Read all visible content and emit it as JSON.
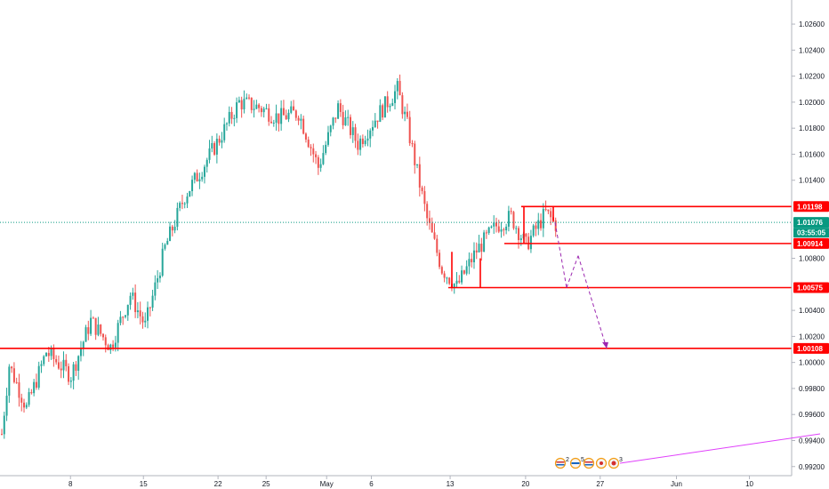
{
  "chart_data": {
    "type": "candlestick",
    "y_ticks": [
      "1.02600",
      "1.02400",
      "1.02200",
      "1.02000",
      "1.01800",
      "1.01600",
      "1.01400",
      "1.00800",
      "1.00400",
      "1.00200",
      "1.00000",
      "0.99800",
      "0.99600",
      "0.99400",
      "0.99200"
    ],
    "y_tick_values": [
      1.026,
      1.024,
      1.022,
      1.02,
      1.018,
      1.016,
      1.014,
      1.008,
      1.004,
      1.002,
      1.0,
      0.998,
      0.996,
      0.994,
      0.992
    ],
    "ylim": [
      0.9913,
      1.02785
    ],
    "x_ticks": [
      "8",
      "15",
      "22",
      "25",
      "May",
      "6",
      "13",
      "20",
      "27",
      "Jun",
      "10"
    ],
    "x_tick_positions": [
      0.085,
      0.173,
      0.263,
      0.321,
      0.394,
      0.448,
      0.543,
      0.634,
      0.724,
      0.816,
      0.904
    ],
    "grid": false,
    "colors": {
      "up": "#26a69a",
      "down": "#ef5350",
      "level": "#ff0000",
      "current": "#089981",
      "projection": "#9c27b0",
      "trendline": "#e040fb"
    },
    "levels": [
      {
        "label": "1.01198",
        "value": 1.01198
      },
      {
        "label": "1.00914",
        "value": 1.00914
      },
      {
        "label": "1.00575",
        "value": 1.00575
      },
      {
        "label": "1.00108",
        "value": 1.00108
      }
    ],
    "current_price": {
      "label": "1.01076",
      "value": 1.01076,
      "countdown": "03:55:05"
    },
    "anchors": [
      [
        0,
        0.9945
      ],
      [
        3,
        0.9998
      ],
      [
        10,
        0.9965
      ],
      [
        18,
        1.0008
      ],
      [
        28,
        0.999
      ],
      [
        36,
        1.0032
      ],
      [
        44,
        1.0012
      ],
      [
        52,
        1.0052
      ],
      [
        58,
        1.0028
      ],
      [
        66,
        1.0088
      ],
      [
        74,
        1.0128
      ],
      [
        80,
        1.0146
      ],
      [
        88,
        1.0172
      ],
      [
        96,
        1.02
      ],
      [
        104,
        1.0196
      ],
      [
        112,
        1.0188
      ],
      [
        120,
        1.0192
      ],
      [
        128,
        1.015
      ],
      [
        136,
        1.0196
      ],
      [
        144,
        1.0168
      ],
      [
        152,
        1.019
      ],
      [
        160,
        1.021
      ],
      [
        164,
        1.0182
      ],
      [
        172,
        1.011
      ],
      [
        178,
        1.0072
      ],
      [
        184,
        1.0058
      ],
      [
        192,
        1.0086
      ],
      [
        200,
        1.0105
      ],
      [
        206,
        1.0112
      ],
      [
        212,
        1.009
      ],
      [
        220,
        1.0115
      ],
      [
        224,
        1.0106
      ]
    ],
    "projection_path": [
      [
        1.01076,
        1.00575
      ],
      [
        1.0082,
        1.00108
      ]
    ],
    "events": {
      "count1": "2",
      "count2": "5",
      "count3": "3"
    }
  }
}
